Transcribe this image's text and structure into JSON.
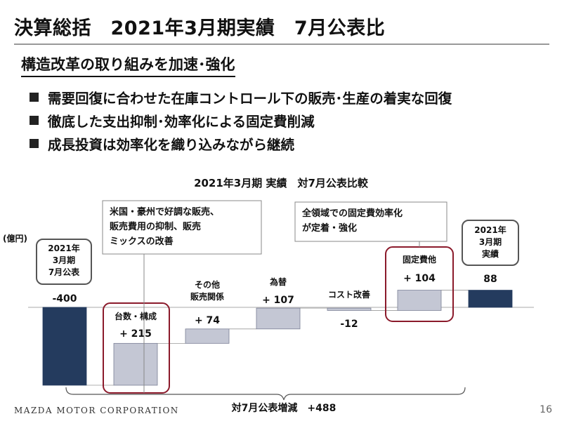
{
  "header": {
    "title": "決算総括　2021年3月期実績　7月公表比",
    "subtitle": "構造改革の取り組みを加速･強化"
  },
  "bullets": [
    "需要回復に合わせた在庫コントロール下の販売･生産の着実な回復",
    "徹底した支出抑制･効率化による固定費削減",
    "成長投資は効率化を織り込みながら継続"
  ],
  "chart_data": {
    "type": "bar",
    "subtype": "waterfall",
    "title": "2021年3月期 実績　対7月公表比較",
    "ylabel": "(億円)",
    "steps": [
      {
        "name": "2021年 3月期 7月公表",
        "name_lines": [
          "2021年",
          "3月期",
          "7月公表"
        ],
        "value": -400,
        "kind": "total",
        "label": "-400"
      },
      {
        "name": "台数・構成",
        "name_lines": [
          "台数・構成"
        ],
        "value": 215,
        "kind": "delta",
        "label": "+ 215"
      },
      {
        "name": "その他 販売関係",
        "name_lines": [
          "その他",
          "販売関係"
        ],
        "value": 74,
        "kind": "delta",
        "label": "+ 74"
      },
      {
        "name": "為替",
        "name_lines": [
          "為替"
        ],
        "value": 107,
        "kind": "delta",
        "label": "+ 107"
      },
      {
        "name": "コスト改善",
        "name_lines": [
          "コスト改善"
        ],
        "value": -12,
        "kind": "delta",
        "label": "-12"
      },
      {
        "name": "固定費他",
        "name_lines": [
          "固定費他"
        ],
        "value": 104,
        "kind": "delta",
        "label": "+ 104"
      },
      {
        "name": "2021年 3月期 実績",
        "name_lines": [
          "2021年",
          "3月期",
          "実績"
        ],
        "value": 88,
        "kind": "total",
        "label": "88"
      }
    ],
    "callouts": [
      {
        "lines": [
          "米国・豪州で好調な販売、",
          "販売費用の抑制、販売",
          "ミックスの改善"
        ]
      },
      {
        "lines": [
          "全領域での固定費効率化",
          "が定着・強化"
        ]
      }
    ],
    "total_change_label": "対7月公表増減　+488",
    "colors": {
      "total": "#243b5e",
      "delta": "#c4c7d4",
      "highlight": "#8b1a2b"
    }
  },
  "footer": {
    "company": "MAZDA MOTOR CORPORATION",
    "page": "16"
  }
}
